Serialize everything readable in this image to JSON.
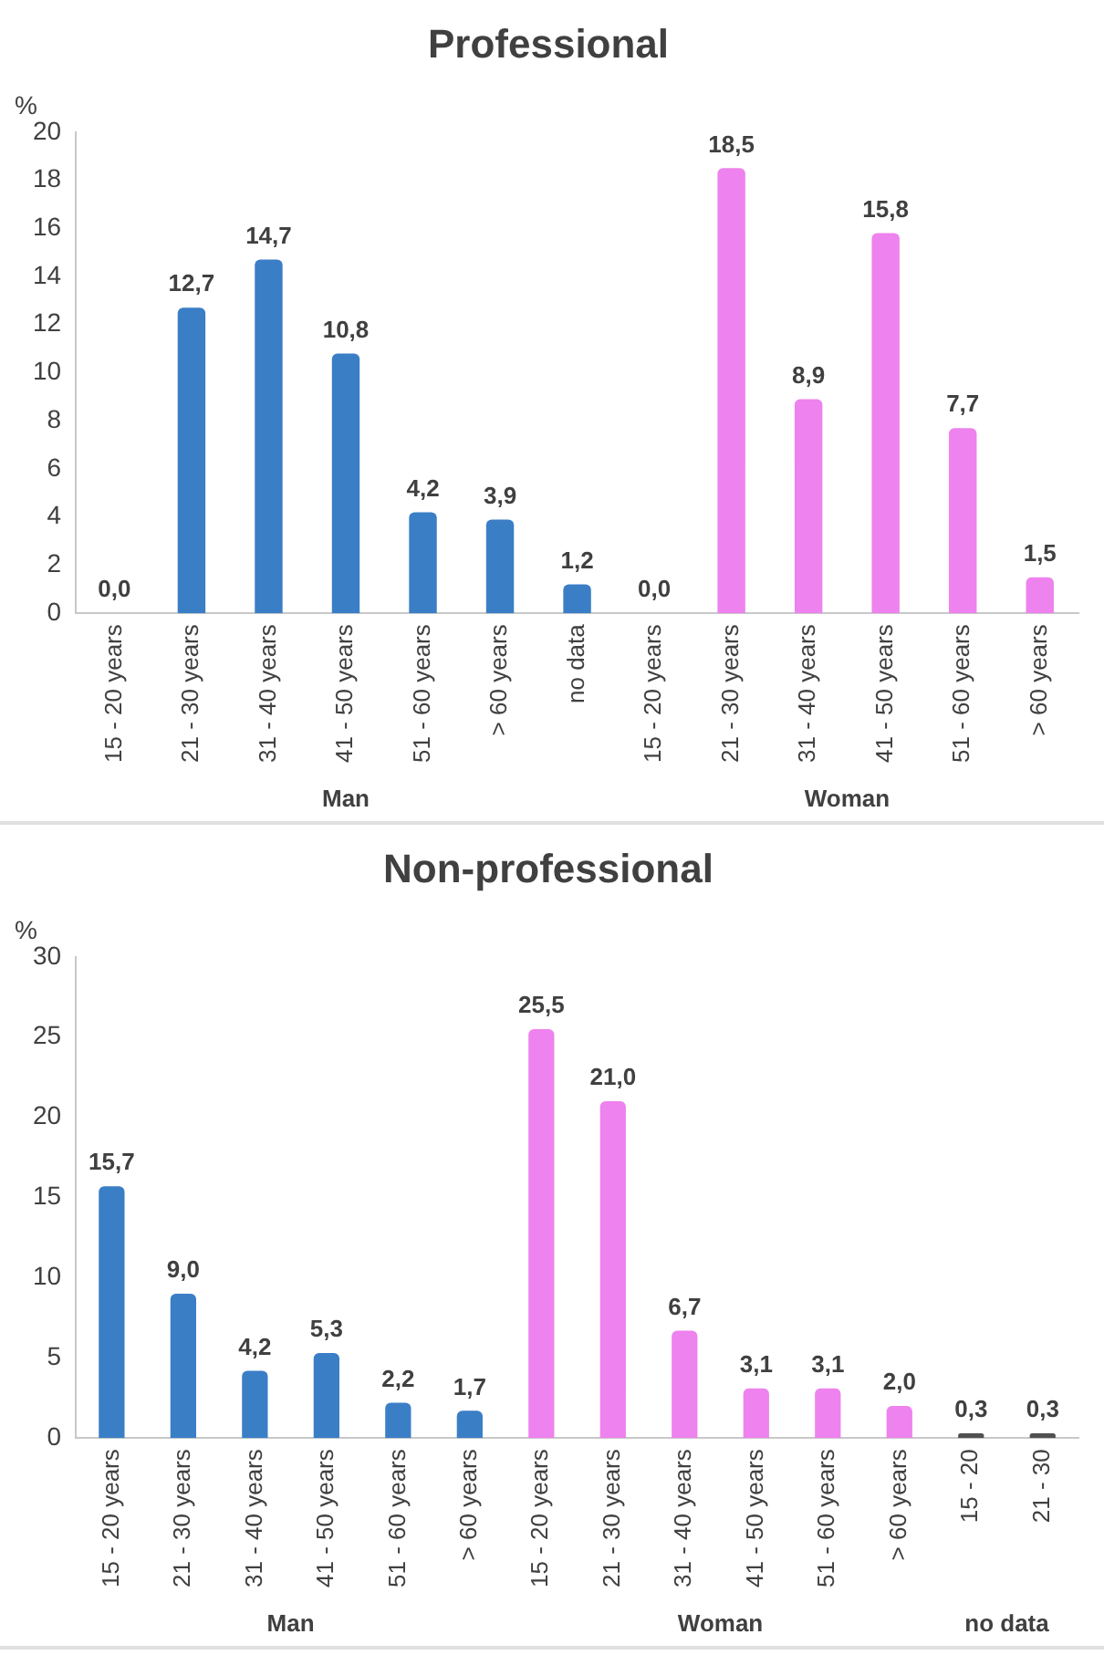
{
  "chart_data": [
    {
      "type": "bar",
      "title": "Professional",
      "ylabel": "%",
      "annotations": [
        "Man",
        "Woman"
      ],
      "categories": [
        "15 - 20 years",
        "21 - 30 years",
        "31 - 40 years",
        "41 - 50 years",
        "51 - 60 years",
        "> 60 years",
        "no data",
        "15 - 20 years",
        "21 - 30 years",
        "31 - 40 years",
        "41 - 50 years",
        "51 - 60 years",
        "> 60 years"
      ],
      "series": [
        {
          "color": "#3a7ec6",
          "values": [
            0.0,
            12.7,
            14.7,
            10.8,
            4.2,
            3.9,
            1.2,
            null,
            null,
            null,
            null,
            null,
            null
          ],
          "value_labels": [
            "0,0",
            "12,7",
            "14,7",
            "10,8",
            "4,2",
            "3,9",
            "1,2",
            null,
            null,
            null,
            null,
            null,
            null
          ]
        },
        {
          "color": "#ee82ee",
          "values": [
            null,
            null,
            null,
            null,
            null,
            null,
            null,
            0.0,
            18.5,
            8.9,
            15.8,
            7.7,
            1.5
          ],
          "value_labels": [
            null,
            null,
            null,
            null,
            null,
            null,
            null,
            "0,0",
            "18,5",
            "8,9",
            "15,8",
            "7,7",
            "1,5"
          ]
        }
      ],
      "ylim": [
        0,
        20
      ],
      "yticks": [
        0,
        2,
        4,
        6,
        8,
        10,
        12,
        14,
        16,
        18,
        20
      ],
      "grid": false,
      "legend": false
    },
    {
      "type": "bar",
      "title": "Non-professional",
      "ylabel": "%",
      "annotations": [
        "Man",
        "Woman",
        "no data"
      ],
      "categories": [
        "15 - 20 years",
        "21 - 30 years",
        "31 - 40 years",
        "41 - 50 years",
        "51 - 60 years",
        "> 60 years",
        "15 - 20 years",
        "21 - 30 years",
        "31 - 40 years",
        "41 - 50 years",
        "51 - 60 years",
        "> 60 years",
        "15 - 20",
        "21 - 30"
      ],
      "series": [
        {
          "color": "#3a7ec6",
          "values": [
            15.7,
            9.0,
            4.2,
            5.3,
            2.2,
            1.7,
            null,
            null,
            null,
            null,
            null,
            null,
            null,
            null
          ],
          "value_labels": [
            "15,7",
            "9,0",
            "4,2",
            "5,3",
            "2,2",
            "1,7",
            null,
            null,
            null,
            null,
            null,
            null,
            null,
            null
          ]
        },
        {
          "color": "#ee82ee",
          "values": [
            null,
            null,
            null,
            null,
            null,
            null,
            25.5,
            21.0,
            6.7,
            3.1,
            3.1,
            2.0,
            null,
            null
          ],
          "value_labels": [
            null,
            null,
            null,
            null,
            null,
            null,
            "25,5",
            "21,0",
            "6,7",
            "3,1",
            "3,1",
            "2,0",
            null,
            null
          ]
        },
        {
          "color": "#505050",
          "values": [
            null,
            null,
            null,
            null,
            null,
            null,
            null,
            null,
            null,
            null,
            null,
            null,
            0.3,
            0.3
          ],
          "value_labels": [
            null,
            null,
            null,
            null,
            null,
            null,
            null,
            null,
            null,
            null,
            null,
            null,
            "0,3",
            "0,3"
          ]
        }
      ],
      "ylim": [
        0,
        30
      ],
      "yticks": [
        0,
        5,
        10,
        15,
        20,
        25,
        30
      ],
      "grid": false,
      "legend": false
    }
  ]
}
